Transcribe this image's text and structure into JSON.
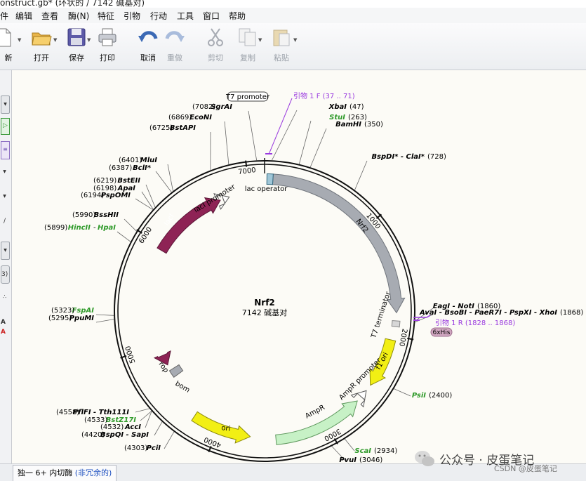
{
  "window": {
    "title": "onstruct.gb* (环状的 / 7142 碱基对)"
  },
  "menu": {
    "items": [
      "件",
      "编辑",
      "查看",
      "酶(N)",
      "特征",
      "引物",
      "行动",
      "工具",
      "窗口",
      "帮助"
    ]
  },
  "toolbar": {
    "new": "新",
    "open": "打开",
    "save": "保存",
    "print": "打印",
    "undo": "取消",
    "redo": "重做",
    "cut": "剪切",
    "copy": "复制",
    "paste": "粘贴"
  },
  "leftstrip": {
    "items": [
      "3)",
      "A",
      "A"
    ]
  },
  "map": {
    "name": "Nrf2",
    "size": "7142 碱基对",
    "ticks": [
      "1000",
      "2000",
      "3000",
      "4000",
      "5000",
      "6000",
      "7000"
    ],
    "features": {
      "nrf2": "Nrf2",
      "t7term": "T7 terminator",
      "f1ori": "f1 ori",
      "ampprom": "AmpR promoter",
      "ampr": "AmpR",
      "ori": "ori",
      "rop": "rop",
      "bom": "bom",
      "laci": "lacI",
      "laciprom": "lacI promoter",
      "lacop": "lac operator",
      "t7prom": "T7 promoter",
      "his": "6xHis"
    },
    "primer_f": "引物 1 F   (37 .. 71)",
    "primer_r": "引物 1 R   (1828 .. 1868)",
    "enzymes": {
      "sgrai": "SgrAI",
      "sgrai_pos": "(7082)",
      "econi": "EcoNI",
      "econi_pos": "(6869)",
      "bstapi": "BstAPI",
      "bstapi_pos": "(6725)",
      "mlui": "MluI",
      "mlui_pos": "(6401)",
      "bcli": "BclI*",
      "bcli_pos": "(6387)",
      "bsteii": "BstEII",
      "bsteii_pos": "(6219)",
      "apai": "ApaI",
      "apai_pos": "(6198)",
      "pspomi": "PspOMI",
      "pspomi_pos": "(6194)",
      "bsshii": "BssHII",
      "bsshii_pos": "(5990)",
      "hincii": "HincII",
      "hpai": "HpaI",
      "hincii_pos": "(5899)",
      "fspai": "FspAI",
      "fspai_pos": "(5323)",
      "ppumi": "PpuMI",
      "ppumi_pos": "(5295)",
      "pflfi": "PflFI - Tth111I",
      "pflfi_pos": "(4558)",
      "bstz17i": "BstZ17I",
      "bstz17i_pos": "(4533)",
      "acci": "AccI",
      "acci_pos": "(4532)",
      "bspqi": "BspQI - SapI",
      "bspqi_pos": "(4420)",
      "pcii": "PciI",
      "pcii_pos": "(4303)",
      "xbai": "XbaI",
      "xbai_pos": "(47)",
      "stui": "StuI",
      "stui_pos": "(263)",
      "bamhi": "BamHI",
      "bamhi_pos": "(350)",
      "bspdi": "BspDI* - ClaI*",
      "bspdi_pos": "(728)",
      "eagi": "EagI - NotI",
      "eagi_pos": "(1860)",
      "aval": "AvaI - BsoBI - PaeR7I - PspXI - XhoI",
      "aval_pos": "(1868)",
      "psii": "PsiI",
      "psii_pos": "(2400)",
      "scai": "ScaI",
      "scai_pos": "(2934)",
      "pvui": "PvuI",
      "pvui_pos": "(3046)"
    }
  },
  "status": {
    "tab_prefix": "独一 6+ 内切酶 ",
    "tab_suffix": "(非冗余的)"
  },
  "watermark": {
    "main": "公众号 · 皮蛋笔记",
    "sub": "CSDN @皮蛋笔记"
  },
  "colors": {
    "nrf2": "#a7abb2",
    "laci": "#8e2355",
    "f1ori": "#f2ef14",
    "ampr": "#c7f1c6",
    "ori": "#f2ef14",
    "primer": "#9a3adf",
    "green_enzyme": "#2f9a2a",
    "his": "#d1a7c1"
  }
}
